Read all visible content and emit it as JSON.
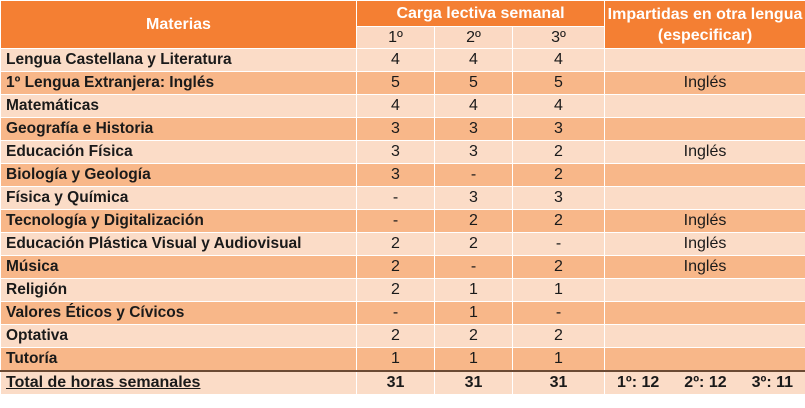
{
  "header": {
    "materias": "Materias",
    "carga": "Carga lectiva semanal",
    "otra_lengua": "Impartidas en otra lengua (especificar)",
    "courses": [
      "1º",
      "2º",
      "3º"
    ]
  },
  "rows": [
    {
      "name": "Lengua Castellana y Literatura",
      "c1": "4",
      "c2": "4",
      "c3": "4",
      "lang": ""
    },
    {
      "name": "1º Lengua Extranjera: Inglés",
      "c1": "5",
      "c2": "5",
      "c3": "5",
      "lang": "Inglés"
    },
    {
      "name": "Matemáticas",
      "c1": "4",
      "c2": "4",
      "c3": "4",
      "lang": ""
    },
    {
      "name": "Geografía e Historia",
      "c1": "3",
      "c2": "3",
      "c3": "3",
      "lang": ""
    },
    {
      "name": "Educación Física",
      "c1": "3",
      "c2": "3",
      "c3": "2",
      "lang": "Inglés"
    },
    {
      "name": "Biología y Geología",
      "c1": "3",
      "c2": "-",
      "c3": "2",
      "lang": ""
    },
    {
      "name": "Física y Química",
      "c1": "-",
      "c2": "3",
      "c3": "3",
      "lang": ""
    },
    {
      "name": "Tecnología y Digitalización",
      "c1": "-",
      "c2": "2",
      "c3": "2",
      "lang": "Inglés"
    },
    {
      "name": "Educación Plástica Visual y Audiovisual",
      "c1": "2",
      "c2": "2",
      "c3": "-",
      "lang": "Inglés"
    },
    {
      "name": "Música",
      "c1": "2",
      "c2": "-",
      "c3": "2",
      "lang": "Inglés"
    },
    {
      "name": "Religión",
      "c1": "2",
      "c2": "1",
      "c3": "1",
      "lang": ""
    },
    {
      "name": "Valores Éticos y Cívicos",
      "c1": "-",
      "c2": "1",
      "c3": "-",
      "lang": ""
    },
    {
      "name": "Optativa",
      "c1": "2",
      "c2": "2",
      "c3": "2",
      "lang": ""
    },
    {
      "name": "Tutoría",
      "c1": "1",
      "c2": "1",
      "c3": "1",
      "lang": ""
    }
  ],
  "total": {
    "label": "Total de horas semanales",
    "c1": "31",
    "c2": "31",
    "c3": "31",
    "lang1": "1º: 12",
    "lang2": "2º: 12",
    "lang3": "3º: 11"
  },
  "colors": {
    "header": "#f47f33",
    "row_light": "#fbdcc7",
    "row_dark": "#f8b789"
  }
}
